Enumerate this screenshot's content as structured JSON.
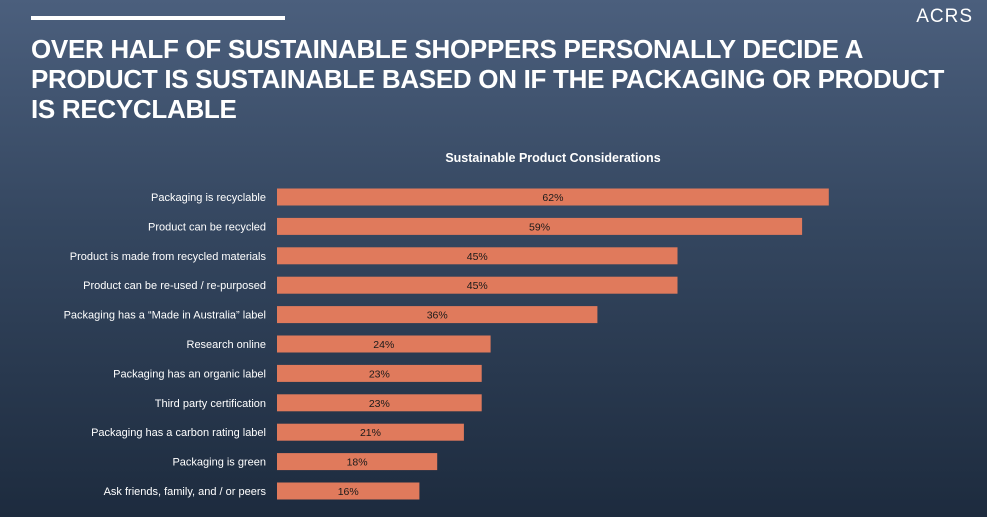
{
  "slide": {
    "logo": "ACRS",
    "title": "OVER HALF OF SUSTAINABLE SHOPPERS PERSONALLY DECIDE A PRODUCT IS SUSTAINABLE BASED ON IF THE PACKAGING OR PRODUCT IS RECYCLABLE"
  },
  "colors": {
    "bar": "#e07a5c",
    "background_top": "#4b5f7d",
    "background_bottom": "#1d2b3e"
  },
  "chart_data": {
    "type": "bar",
    "orientation": "horizontal",
    "title": "Sustainable Product Considerations",
    "categories": [
      "Packaging is recyclable",
      "Product can be recycled",
      "Product is made from recycled materials",
      "Product can be re-used / re-purposed",
      "Packaging has a “Made in Australia” label",
      "Research online",
      "Packaging has an organic label",
      "Third party certification",
      "Packaging has a carbon rating label",
      "Packaging is green",
      "Ask friends, family, and / or peers"
    ],
    "values": [
      62,
      59,
      45,
      45,
      36,
      24,
      23,
      23,
      21,
      18,
      16
    ],
    "value_labels": [
      "62%",
      "59%",
      "45%",
      "45%",
      "36%",
      "24%",
      "23%",
      "23%",
      "21%",
      "18%",
      "16%"
    ],
    "xlim": [
      0,
      100
    ],
    "grid": false,
    "legend": "none"
  }
}
